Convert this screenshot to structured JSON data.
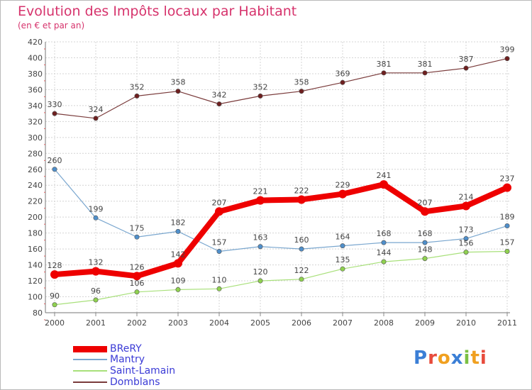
{
  "chart_data": {
    "type": "line",
    "title": "Evolution des Impôts locaux par Habitant",
    "subtitle": "(en € et par an)",
    "xlabel": "",
    "ylabel": "",
    "x": [
      "2000",
      "2001",
      "2002",
      "2003",
      "2004",
      "2005",
      "2006",
      "2007",
      "2008",
      "2009",
      "2010",
      "2011"
    ],
    "ylim": [
      80,
      420
    ],
    "yticks": [
      80,
      100,
      120,
      140,
      160,
      180,
      200,
      220,
      240,
      260,
      280,
      300,
      320,
      340,
      360,
      380,
      400,
      420
    ],
    "grid": true,
    "legend_position": "bottom-left",
    "series": [
      {
        "name": "BReRY",
        "color": "#ee0000",
        "point_color": "#ee0000",
        "values": [
          128,
          132,
          126,
          142,
          207,
          221,
          222,
          229,
          241,
          207,
          214,
          237
        ]
      },
      {
        "name": "Mantry",
        "color": "#7aa7cf",
        "point_color": "#4f8fcb",
        "values": [
          260,
          199,
          175,
          182,
          157,
          163,
          160,
          164,
          168,
          168,
          173,
          189
        ]
      },
      {
        "name": "Saint-Lamain",
        "color": "#a8e07a",
        "point_color": "#8fd14f",
        "values": [
          90,
          96,
          106,
          109,
          110,
          120,
          122,
          135,
          144,
          148,
          156,
          157
        ]
      },
      {
        "name": "Domblans",
        "color": "#7a3b3b",
        "point_color": "#6e1f1f",
        "values": [
          330,
          324,
          352,
          358,
          342,
          352,
          358,
          369,
          381,
          381,
          387,
          399
        ]
      }
    ]
  },
  "logo": {
    "letters": [
      {
        "ch": "P",
        "color": "#3b7fd6"
      },
      {
        "ch": "r",
        "color": "#e84b3c"
      },
      {
        "ch": "o",
        "color": "#f0a020"
      },
      {
        "ch": "x",
        "color": "#3b7fd6"
      },
      {
        "ch": "i",
        "color": "#7bc043"
      },
      {
        "ch": "t",
        "color": "#f0a020"
      },
      {
        "ch": "i",
        "color": "#e84b3c"
      }
    ]
  }
}
